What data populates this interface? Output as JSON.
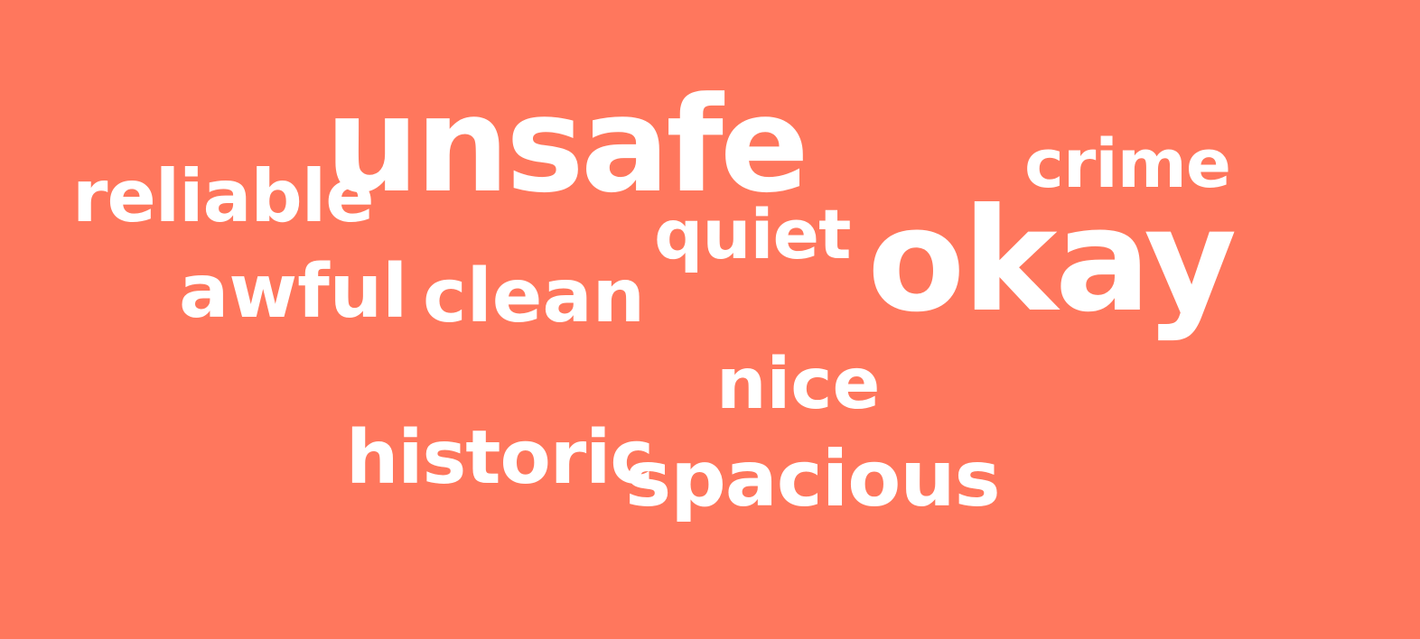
{
  "background_color": "#ff775d",
  "text_color": "#ffffff",
  "words": {
    "unsafe": "unsafe",
    "reliable": "reliable",
    "crime": "crime",
    "quiet": "quiet",
    "okay": "okay",
    "awful": "awful",
    "clean": "clean",
    "nice": "nice",
    "historic": "historic",
    "spacious": "spacious"
  }
}
